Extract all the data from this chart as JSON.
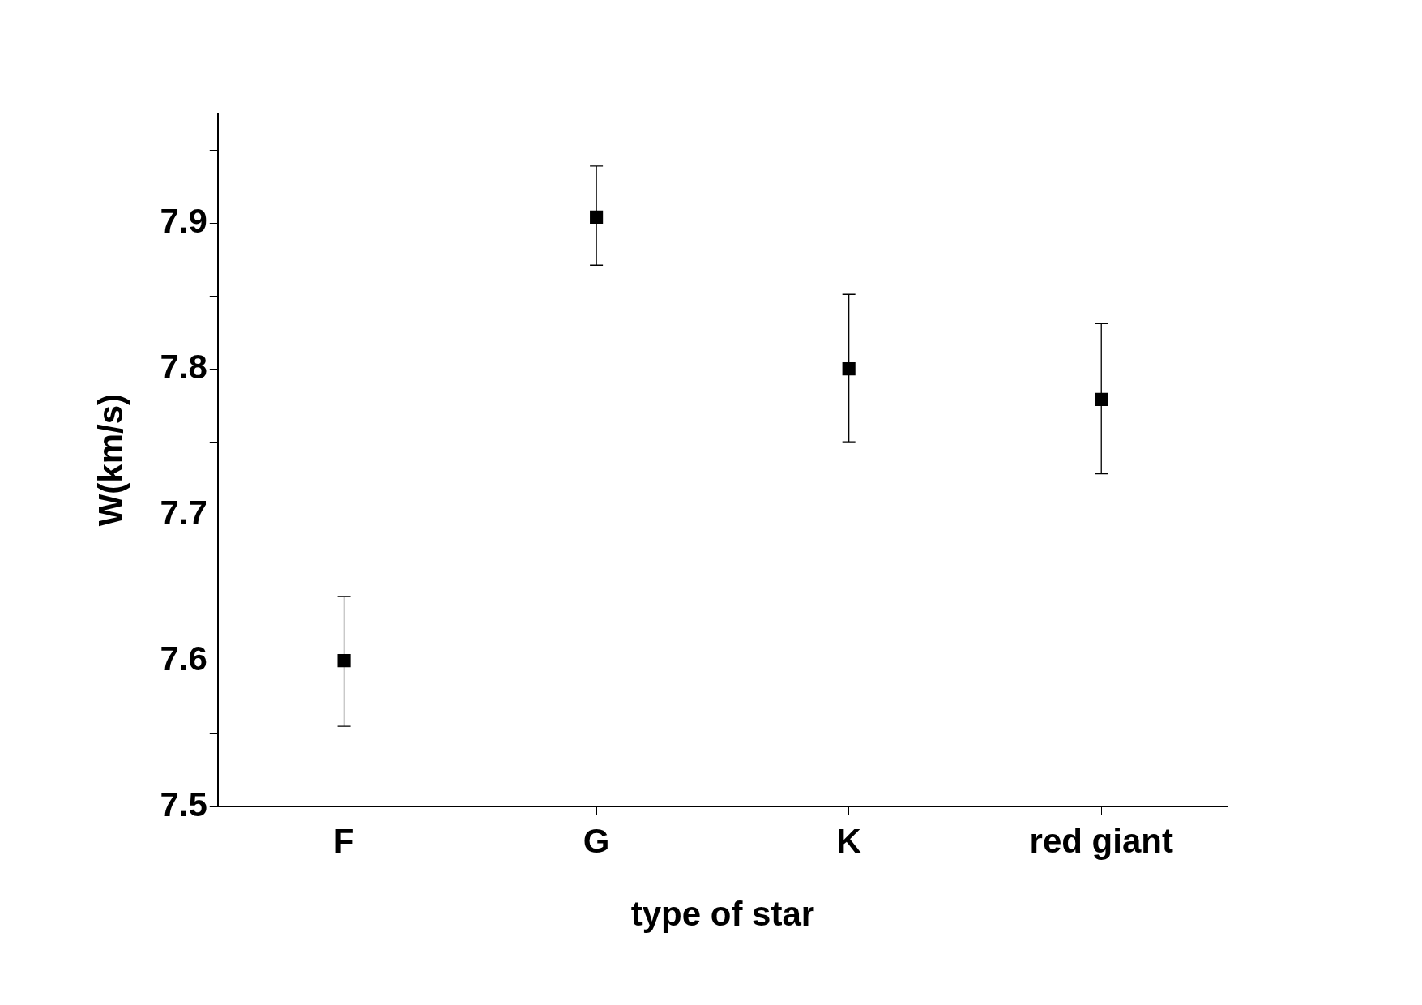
{
  "chart_data": {
    "type": "scatter",
    "xlabel": "type of star",
    "ylabel": "W(km/s)",
    "categories": [
      "F",
      "G",
      "K",
      "red giant"
    ],
    "values": [
      7.6,
      7.904,
      7.8,
      7.779
    ],
    "errors": [
      [
        7.555,
        7.644
      ],
      [
        7.871,
        7.939
      ],
      [
        7.75,
        7.851
      ],
      [
        7.728,
        7.831
      ]
    ],
    "color": "#000000",
    "marker": "square",
    "ylim": [
      7.5,
      7.975
    ],
    "yticks": [
      7.5,
      {
        "value": 7.55,
        "label": null
      },
      7.6,
      {
        "value": 7.65,
        "label": null
      },
      7.7,
      {
        "value": 7.75,
        "label": null
      },
      7.8,
      {
        "value": 7.85,
        "label": null
      },
      7.9,
      {
        "value": 7.95,
        "label": null
      }
    ],
    "grid": false,
    "legend": false
  }
}
